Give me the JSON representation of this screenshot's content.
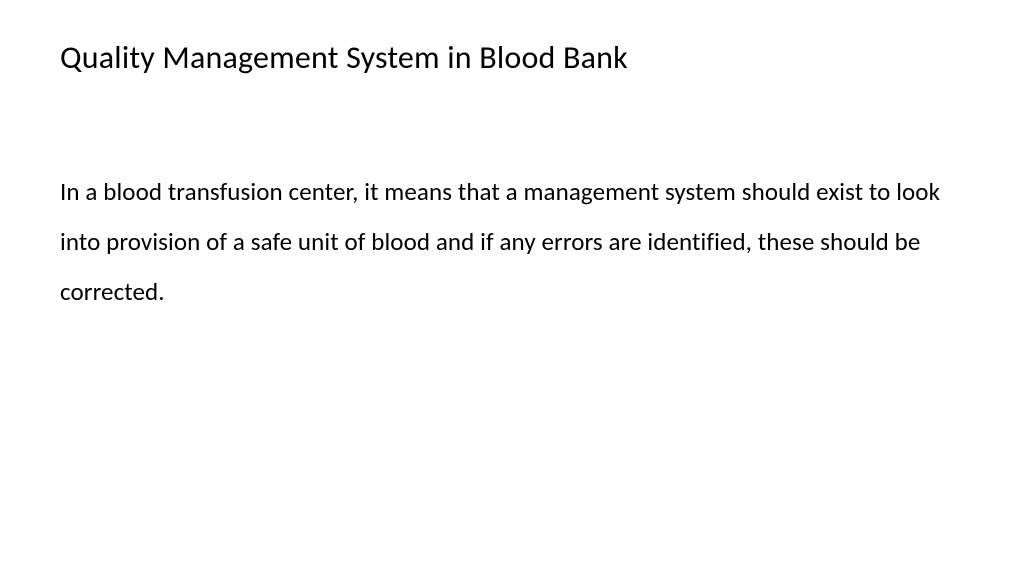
{
  "slide": {
    "title": "Quality Management System in Blood Bank",
    "body": "In a blood transfusion center, it means that a management system should exist to look into provision of a safe unit of blood and if any errors are identified, these should be corrected.",
    "background_color": "#ffffff",
    "title_color": "#000000",
    "body_color": "#000000",
    "title_fontsize": 32,
    "body_fontsize": 25
  }
}
